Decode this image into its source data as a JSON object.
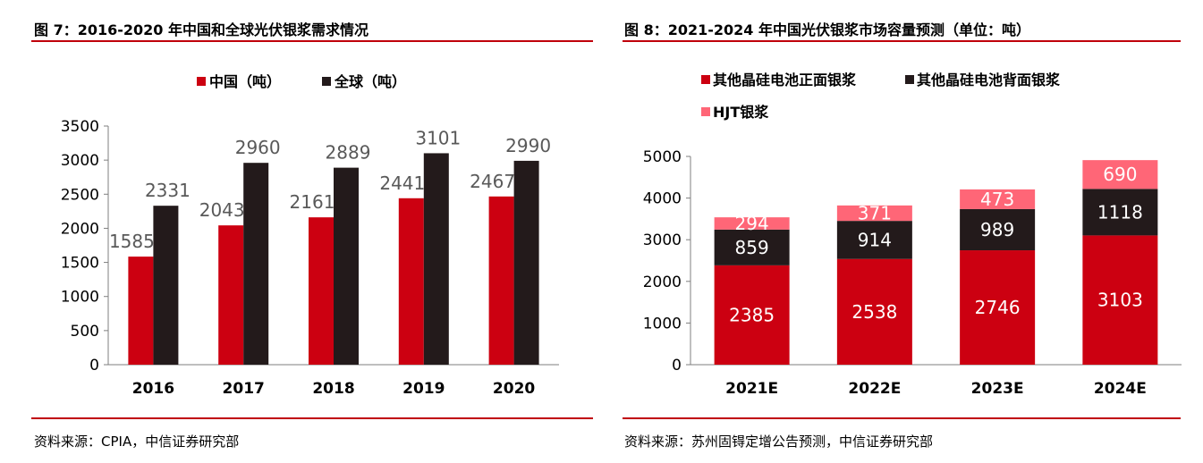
{
  "colors": {
    "red": "#cc0011",
    "black": "#231a1b",
    "pink": "#ff6677",
    "rule": "#c0000b",
    "label_grey": "#595959",
    "label_white": "#ffffff"
  },
  "chart_data": [
    {
      "type": "bar",
      "title": "图 7：2016-2020 年中国和全球光伏银浆需求情况",
      "categories": [
        "2016",
        "2017",
        "2018",
        "2019",
        "2020"
      ],
      "series": [
        {
          "name": "中国（吨）",
          "values": [
            1585,
            2043,
            2161,
            2441,
            2467
          ]
        },
        {
          "name": "全球（吨）",
          "values": [
            2331,
            2960,
            2889,
            3101,
            2990
          ]
        }
      ],
      "ylim": [
        0,
        3500
      ],
      "yticks": [
        "0",
        "500",
        "1000",
        "1500",
        "2000",
        "2500",
        "3000",
        "3500"
      ],
      "xlabel": "",
      "ylabel": "",
      "legend": "top",
      "grid": false,
      "source": "资料来源：CPIA，中信证券研究部"
    },
    {
      "type": "bar",
      "stacked": true,
      "title": "图 8：2021-2024 年中国光伏银浆市场容量预测（单位：吨）",
      "categories": [
        "2021E",
        "2022E",
        "2023E",
        "2024E"
      ],
      "series": [
        {
          "name": "其他晶硅电池正面银浆",
          "values": [
            2385,
            2538,
            2746,
            3103
          ]
        },
        {
          "name": "其他晶硅电池背面银浆",
          "values": [
            859,
            914,
            989,
            1118
          ]
        },
        {
          "name": "HJT银浆",
          "values": [
            294,
            371,
            473,
            690
          ]
        }
      ],
      "ylim": [
        0,
        5000
      ],
      "yticks": [
        "0",
        "1000",
        "2000",
        "3000",
        "4000",
        "5000"
      ],
      "xlabel": "",
      "ylabel": "",
      "legend": "top-left",
      "grid": false,
      "source": "资料来源：苏州固锝定增公告预测，中信证券研究部"
    }
  ]
}
